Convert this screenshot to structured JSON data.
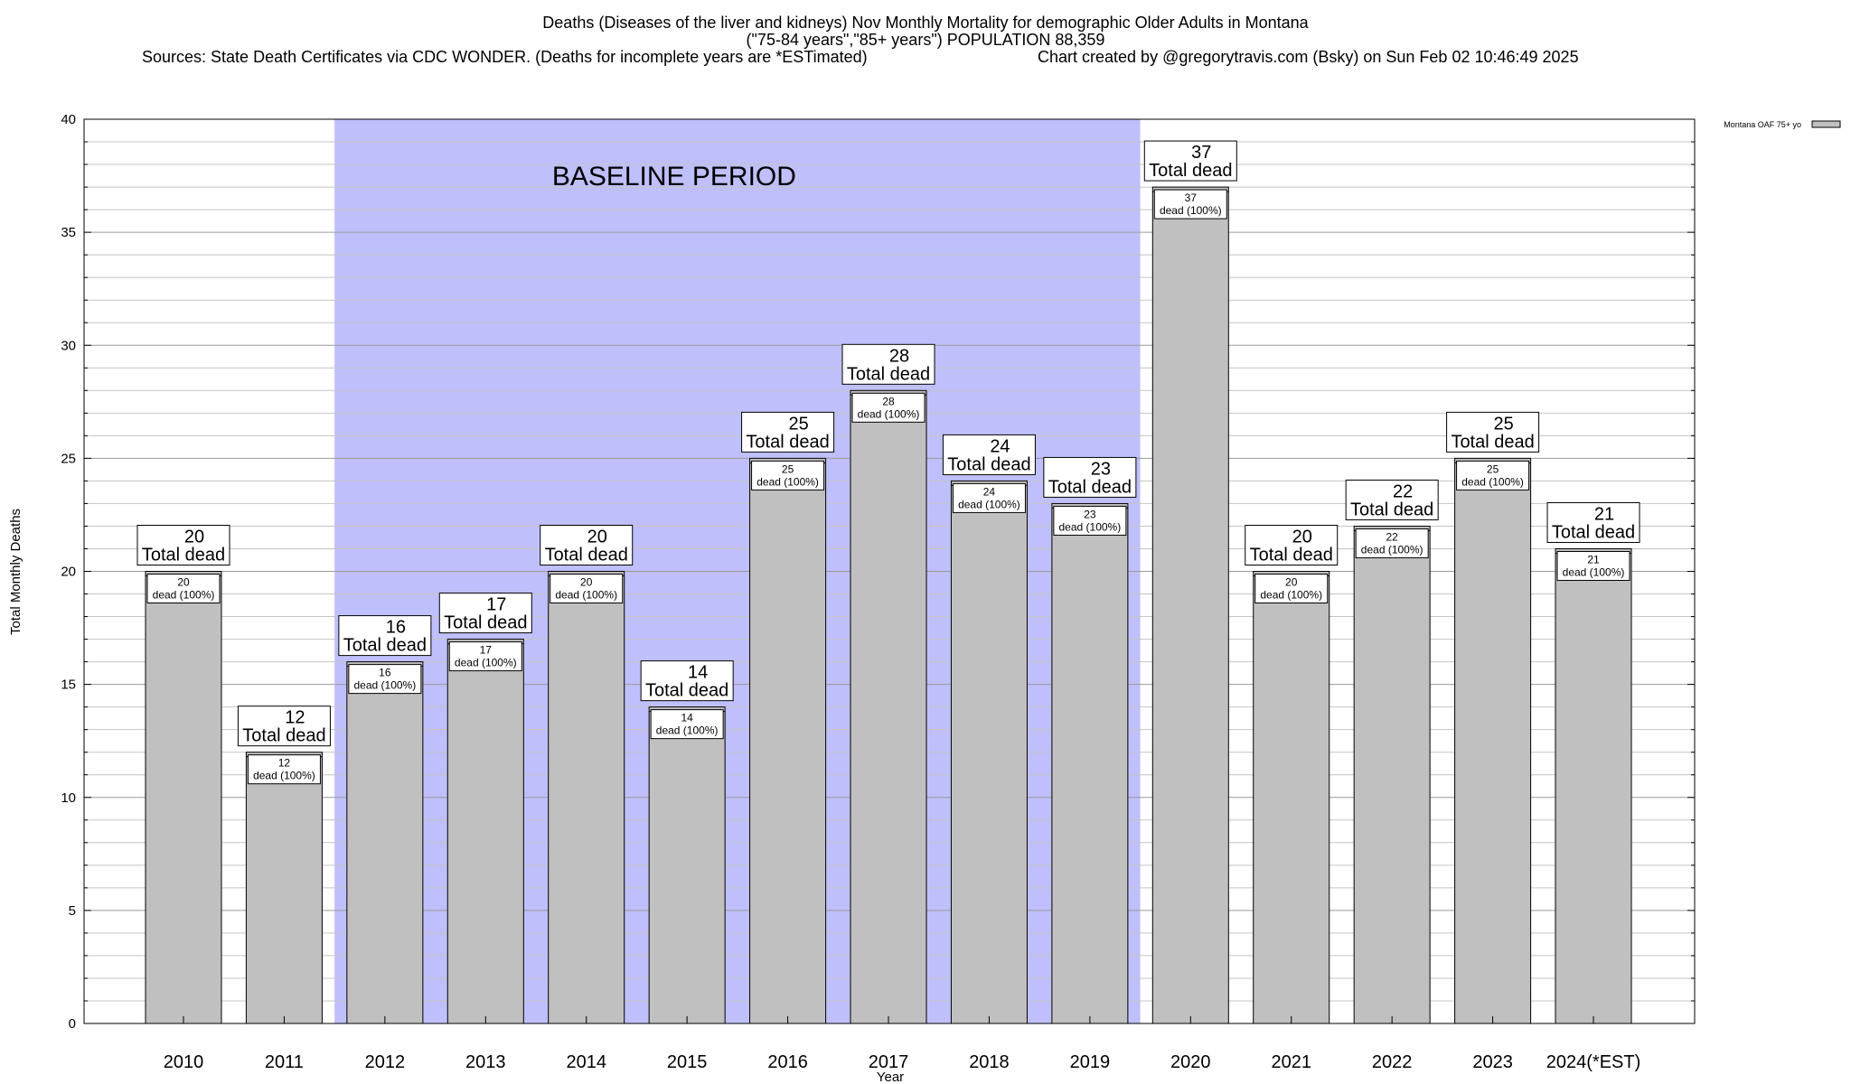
{
  "header": {
    "title_line1": "Deaths (Diseases of the liver and kidneys) Nov Monthly Mortality for demographic Older Adults in Montana",
    "title_line2": "(\"75-84 years\",\"85+ years\") POPULATION 88,359",
    "sources": "Sources: State Death Certificates via CDC WONDER. (Deaths for incomplete years are *ESTimated)",
    "credit": "Chart created by @gregorytravis.com (Bsky) on Sun Feb 02 10:46:49 2025"
  },
  "chart_data": {
    "type": "bar",
    "categories": [
      "2010",
      "2011",
      "2012",
      "2013",
      "2014",
      "2015",
      "2016",
      "2017",
      "2018",
      "2019",
      "2020",
      "2021",
      "2022",
      "2023",
      "2024(*EST)"
    ],
    "series": [
      {
        "name": "Montana OAF 75+ yo",
        "values": [
          20,
          12,
          16,
          17,
          20,
          14,
          25,
          28,
          24,
          23,
          37,
          20,
          22,
          25,
          21
        ],
        "color": "#c0c0c0"
      }
    ],
    "total_label_suffix": "Total dead",
    "inner_label_suffix": "dead (100%)",
    "xlabel": "Year",
    "ylabel": "Total Monthly Deaths",
    "ylim": [
      0,
      40
    ],
    "yticks": [
      0,
      5,
      10,
      15,
      20,
      25,
      30,
      35,
      40
    ],
    "minor_grid_step": 1,
    "grid": true,
    "legend_position": "top-right",
    "baseline": {
      "label": "BASELINE PERIOD",
      "start": "2012",
      "end": "2019",
      "color": "#bfbffb"
    }
  }
}
